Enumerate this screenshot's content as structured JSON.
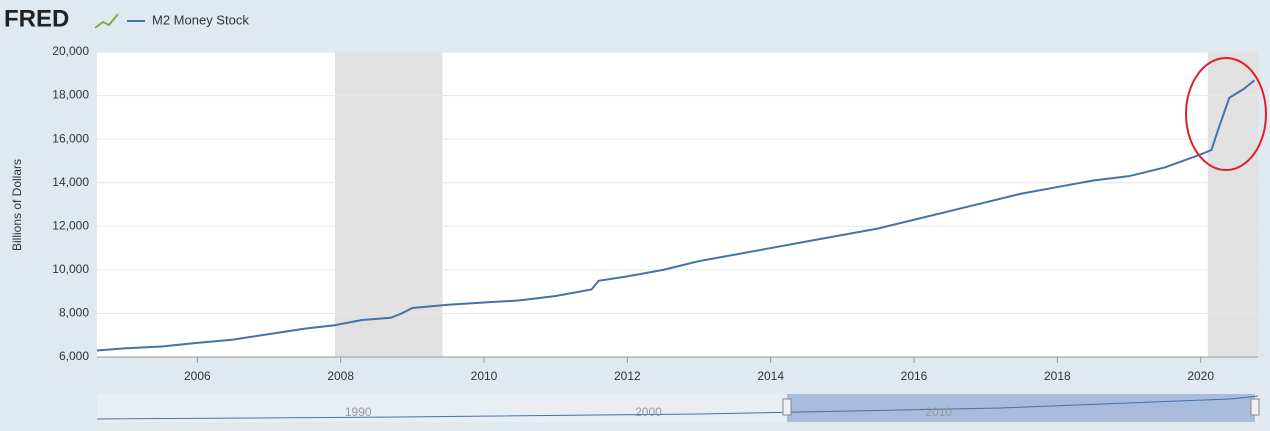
{
  "logo": "FRED",
  "chart_data": {
    "type": "line",
    "y_label": "Billions of Dollars",
    "grid": true,
    "x": [
      2004.6,
      2005,
      2005.5,
      2006,
      2006.5,
      2007,
      2007.5,
      2007.9,
      2008.3,
      2008.7,
      2008.85,
      2009,
      2009.5,
      2010,
      2010.5,
      2011,
      2011.5,
      2011.6,
      2012,
      2012.5,
      2013,
      2013.5,
      2014,
      2014.5,
      2015,
      2015.5,
      2016,
      2016.5,
      2017,
      2017.5,
      2018,
      2018.5,
      2019,
      2019.5,
      2020,
      2020.15,
      2020.25,
      2020.4,
      2020.6,
      2020.75
    ],
    "series": [
      {
        "name": "M2 Money Stock",
        "color": "#4572a7",
        "values": [
          6300,
          6400,
          6480,
          6650,
          6800,
          7050,
          7300,
          7450,
          7700,
          7800,
          8000,
          8250,
          8400,
          8500,
          8600,
          8800,
          9100,
          9500,
          9700,
          10000,
          10400,
          10700,
          11000,
          11300,
          11600,
          11900,
          12300,
          12700,
          13100,
          13500,
          13800,
          14100,
          14300,
          14700,
          15300,
          15500,
          16500,
          17900,
          18300,
          18700
        ]
      }
    ],
    "recessions": [
      [
        2007.92,
        2009.42
      ],
      [
        2020.1,
        2020.8
      ]
    ],
    "xlim": [
      2004.6,
      2020.8
    ],
    "xticks": [
      2006,
      2008,
      2010,
      2012,
      2014,
      2016,
      2018,
      2020
    ],
    "ylim": [
      6000,
      20000
    ],
    "yticks": [
      {
        "value": 6000,
        "label": "6,000"
      },
      {
        "value": 8000,
        "label": "8,000"
      },
      {
        "value": 10000,
        "label": "10,000"
      },
      {
        "value": 12000,
        "label": "12,000"
      },
      {
        "value": 14000,
        "label": "14,000"
      },
      {
        "value": 16000,
        "label": "16,000"
      },
      {
        "value": 18000,
        "label": "18,000"
      },
      {
        "value": 20000,
        "label": "20,000"
      }
    ],
    "navigator_xticks": [
      1990,
      2000,
      2010
    ]
  }
}
